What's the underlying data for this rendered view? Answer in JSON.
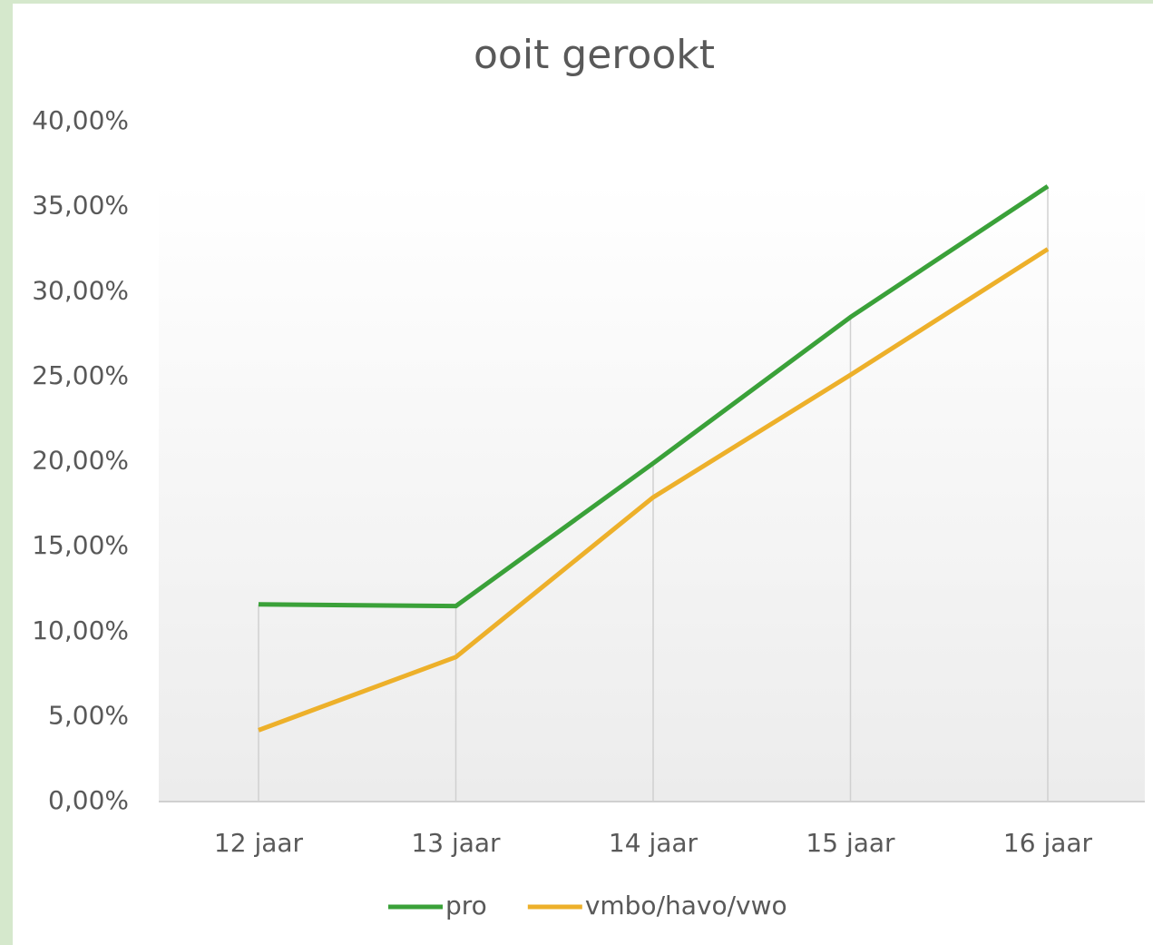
{
  "chart_data": {
    "type": "line",
    "title": "ooit gerookt",
    "categories": [
      "12 jaar",
      "13 jaar",
      "14 jaar",
      "15 jaar",
      "16 jaar"
    ],
    "series": [
      {
        "name": "pro",
        "color": "#3aa139",
        "values": [
          11.6,
          11.5,
          19.9,
          28.5,
          36.2
        ]
      },
      {
        "name": "vmbo/havo/vwo",
        "color": "#edb02a",
        "values": [
          4.2,
          8.5,
          17.9,
          25.1,
          32.5
        ]
      }
    ],
    "ylim": [
      0,
      40
    ],
    "yticks": [
      {
        "value": 0,
        "label": "0,00%"
      },
      {
        "value": 5,
        "label": "5,00%"
      },
      {
        "value": 10,
        "label": "10,00%"
      },
      {
        "value": 15,
        "label": "15,00%"
      },
      {
        "value": 20,
        "label": "20,00%"
      },
      {
        "value": 25,
        "label": "25,00%"
      },
      {
        "value": 30,
        "label": "30,00%"
      },
      {
        "value": 35,
        "label": "35,00%"
      },
      {
        "value": 40,
        "label": "40,00%"
      }
    ],
    "legend": "bottom"
  }
}
